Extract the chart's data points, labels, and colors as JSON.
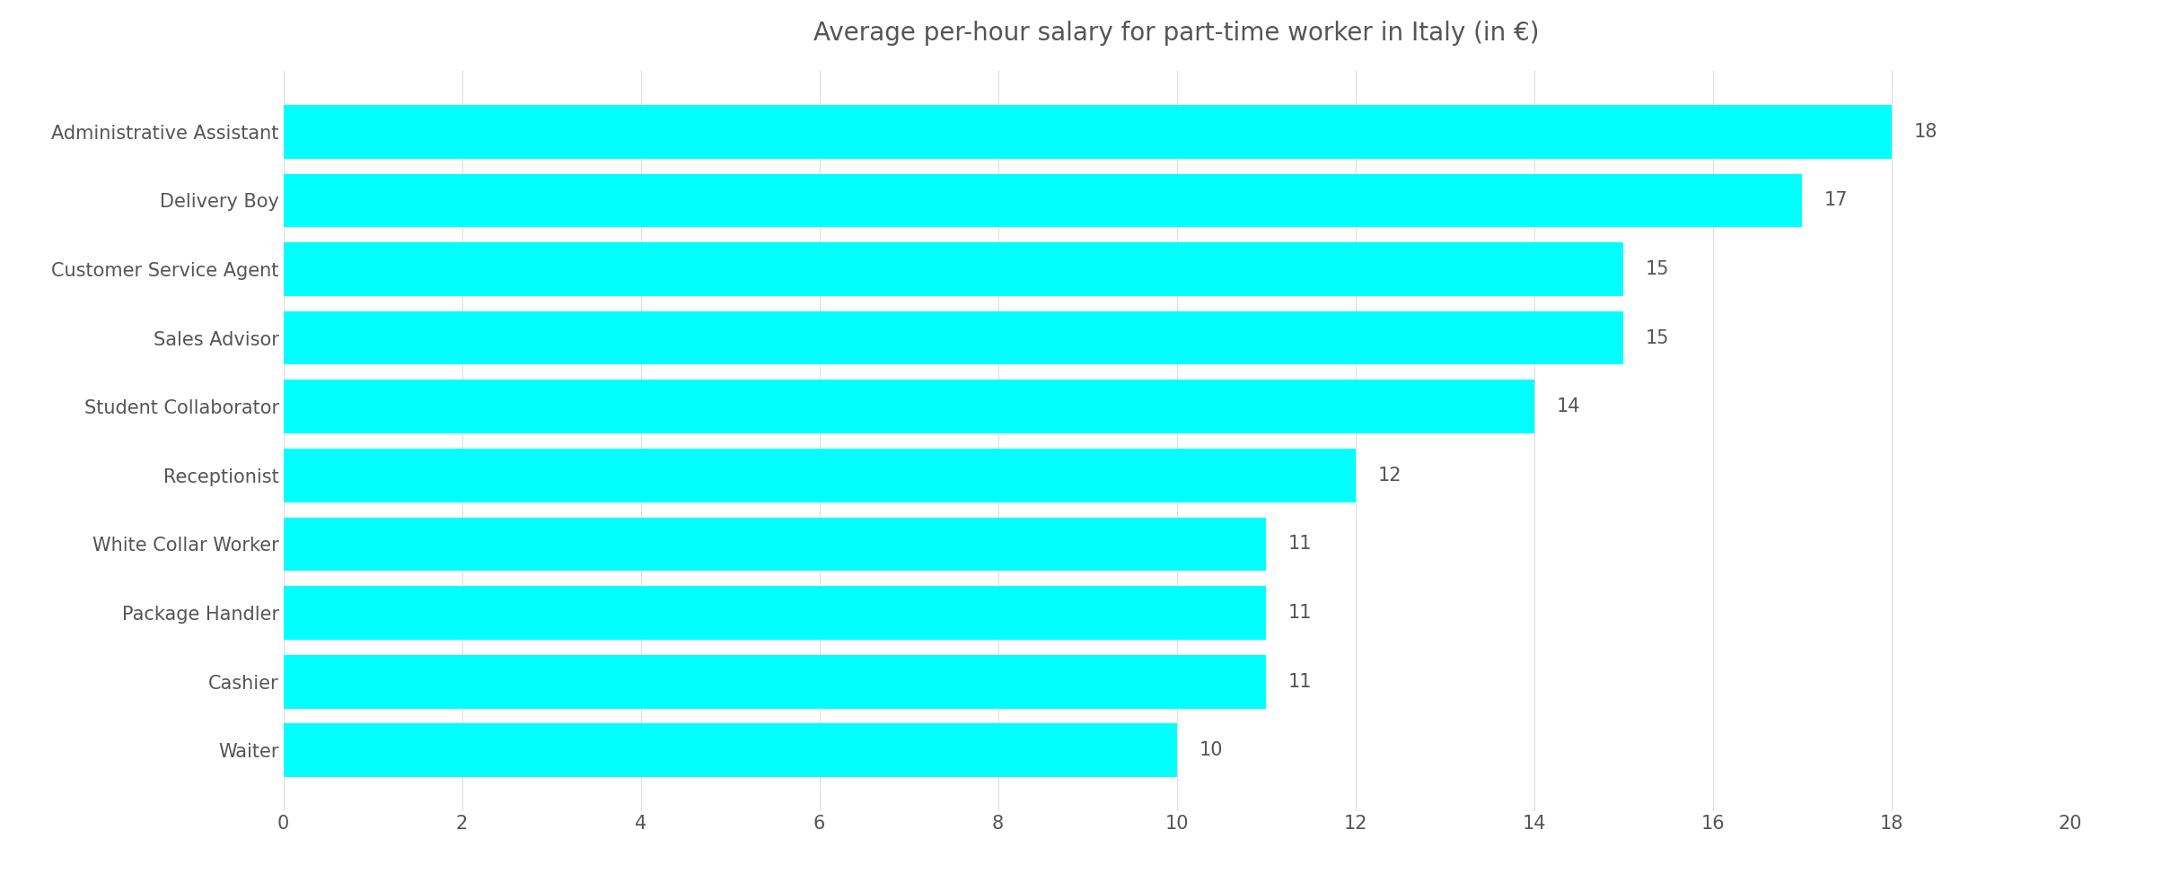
{
  "title": "Average per-hour salary for part-time worker in Italy (in €)",
  "categories": [
    "Administrative Assistant",
    "Delivery Boy",
    "Customer Service Agent",
    "Sales Advisor",
    "Student Collaborator",
    "Receptionist",
    "White Collar Worker",
    "Package Handler",
    "Cashier",
    "Waiter"
  ],
  "values": [
    18,
    17,
    15,
    15,
    14,
    12,
    11,
    11,
    11,
    10
  ],
  "bar_color": "#00FFFF",
  "bar_edge_color": "none",
  "xlim": [
    0,
    20
  ],
  "xticks": [
    0,
    2,
    4,
    6,
    8,
    10,
    12,
    14,
    16,
    18,
    20
  ],
  "title_fontsize": 20,
  "label_fontsize": 15,
  "tick_fontsize": 15,
  "value_fontsize": 15,
  "background_color": "#ffffff",
  "grid_color": "#dddddd",
  "text_color": "#555555",
  "bar_height": 0.78
}
